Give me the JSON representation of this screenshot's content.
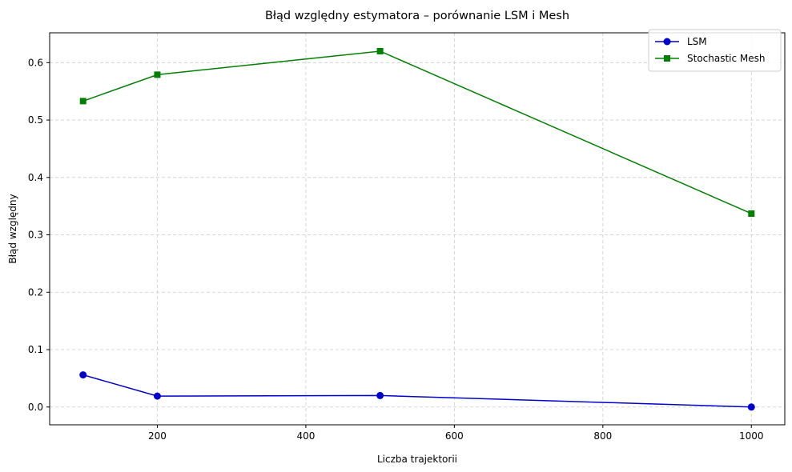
{
  "chart_data": {
    "type": "line",
    "title": "Błąd względny estymatora – porównanie LSM i Mesh",
    "xlabel": "Liczba trajektorii",
    "ylabel": "Błąd względny",
    "xlim": [
      55,
      1045
    ],
    "ylim": [
      -0.031,
      0.652
    ],
    "xticks": [
      200,
      400,
      600,
      800,
      1000
    ],
    "yticks": [
      0.0,
      0.1,
      0.2,
      0.3,
      0.4,
      0.5,
      0.6
    ],
    "xtick_labels": [
      "200",
      "400",
      "600",
      "800",
      "1000"
    ],
    "ytick_labels": [
      "0.0",
      "0.1",
      "0.2",
      "0.3",
      "0.4",
      "0.5",
      "0.6"
    ],
    "grid": true,
    "legend_position": "top-right",
    "x": [
      100,
      200,
      500,
      1000
    ],
    "series": [
      {
        "name": "LSM",
        "values": [
          0.056,
          0.019,
          0.02,
          0.0
        ],
        "color": "#0000cc",
        "marker": "circle"
      },
      {
        "name": "Stochastic Mesh",
        "values": [
          0.533,
          0.579,
          0.62,
          0.337
        ],
        "color": "#007f00",
        "marker": "square"
      }
    ]
  }
}
